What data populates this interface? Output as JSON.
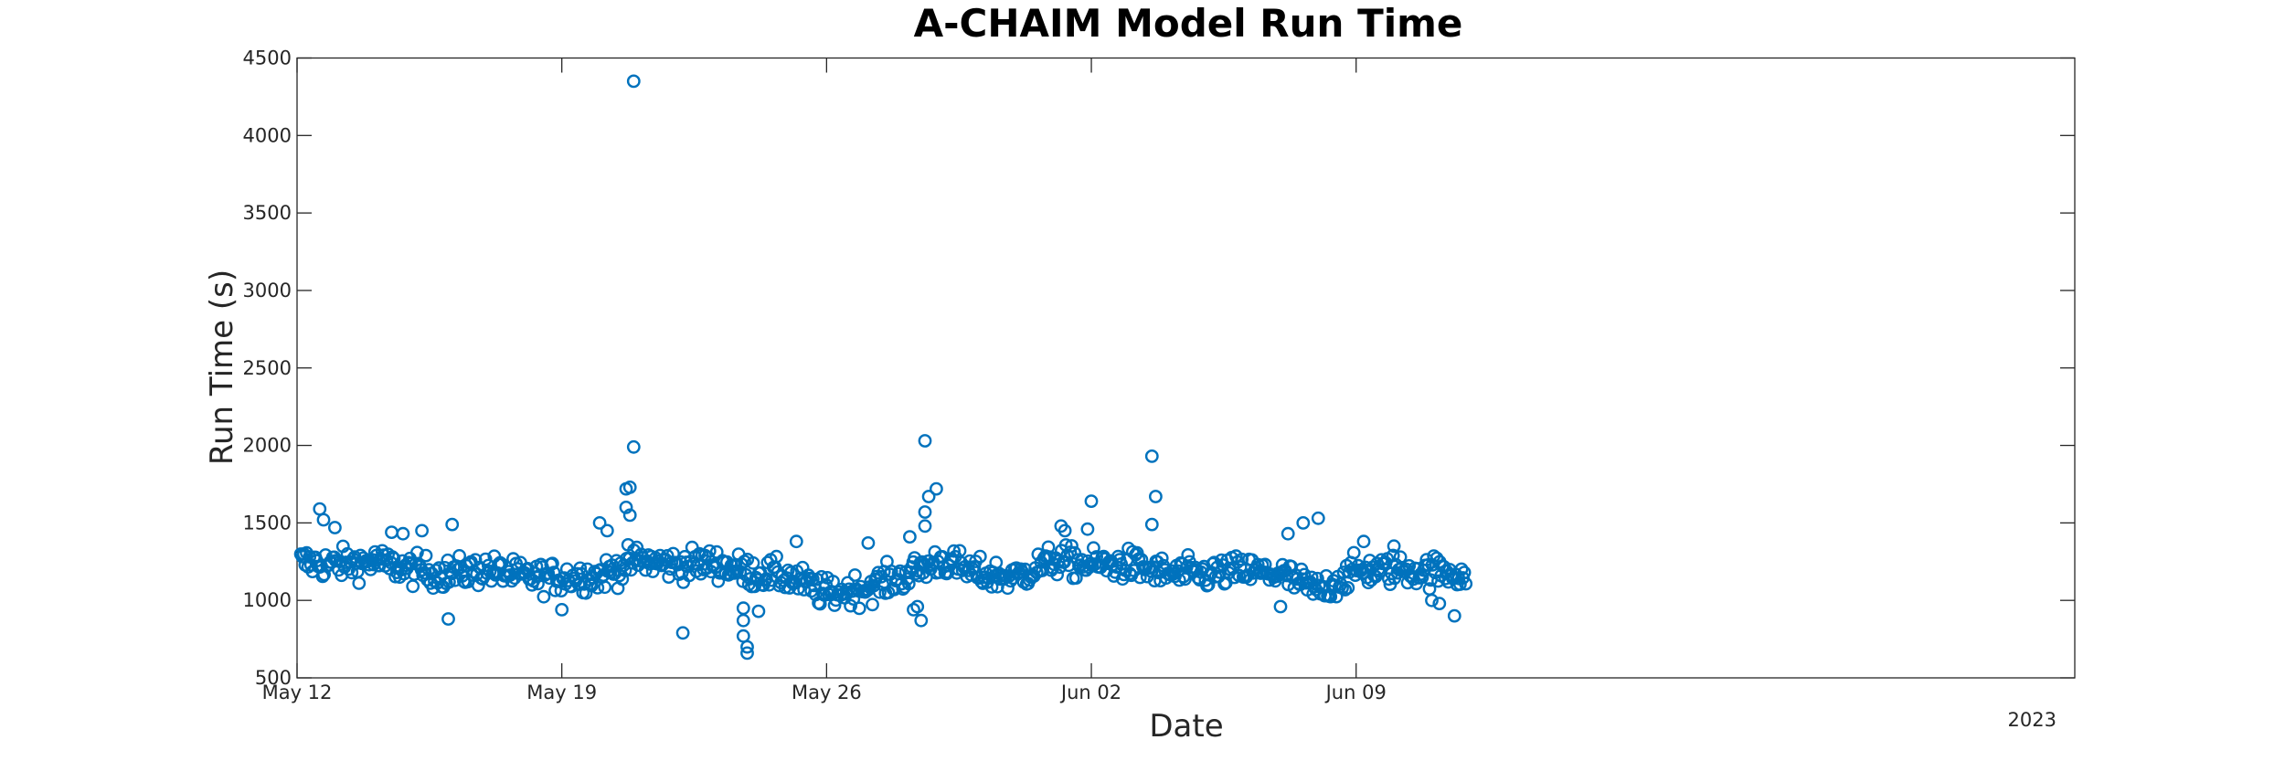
{
  "chart_data": {
    "type": "scatter",
    "title": "A-CHAIM Model Run Time",
    "xlabel": "Date",
    "ylabel": "Run Time (s)",
    "x_unit": "days since May 12 2023",
    "xlim": [
      0,
      47
    ],
    "ylim": [
      500,
      4500
    ],
    "x_ticks": [
      {
        "value": 0,
        "label": "May 12"
      },
      {
        "value": 7,
        "label": "May 19"
      },
      {
        "value": 14,
        "label": "May 26"
      },
      {
        "value": 21,
        "label": "Jun 02"
      },
      {
        "value": 28,
        "label": "Jun 09"
      }
    ],
    "x_secondary_label": "2023",
    "y_ticks": [
      500,
      1000,
      1500,
      2000,
      2500,
      3000,
      3500,
      4000,
      4500
    ],
    "grid": false,
    "marker": "open-circle",
    "series": [
      {
        "name": "Run Time",
        "color": "#0072BD",
        "baseline_profile": [
          [
            0,
            1250
          ],
          [
            1,
            1230
          ],
          [
            2,
            1250
          ],
          [
            3,
            1200
          ],
          [
            4,
            1170
          ],
          [
            5,
            1200
          ],
          [
            6,
            1150
          ],
          [
            7,
            1150
          ],
          [
            8,
            1160
          ],
          [
            9,
            1260
          ],
          [
            10,
            1230
          ],
          [
            11,
            1240
          ],
          [
            12,
            1180
          ],
          [
            13,
            1150
          ],
          [
            14,
            1040
          ],
          [
            15,
            1080
          ],
          [
            16,
            1150
          ],
          [
            17,
            1260
          ],
          [
            18,
            1170
          ],
          [
            19,
            1150
          ],
          [
            20,
            1260
          ],
          [
            21,
            1230
          ],
          [
            22,
            1230
          ],
          [
            23,
            1170
          ],
          [
            24,
            1170
          ],
          [
            25,
            1190
          ],
          [
            26,
            1170
          ],
          [
            27,
            1060
          ],
          [
            28,
            1190
          ],
          [
            29,
            1200
          ],
          [
            30,
            1190
          ],
          [
            31,
            1170
          ]
        ],
        "noise": 80,
        "points_per_day": 26,
        "x_range": [
          0.1,
          30.9
        ],
        "outliers": [
          [
            8.9,
            4350
          ],
          [
            8.9,
            1990
          ],
          [
            8.8,
            1730
          ],
          [
            8.7,
            1720
          ],
          [
            8.7,
            1600
          ],
          [
            8.8,
            1550
          ],
          [
            0.6,
            1590
          ],
          [
            0.7,
            1520
          ],
          [
            1.0,
            1470
          ],
          [
            4.1,
            1490
          ],
          [
            2.5,
            1440
          ],
          [
            2.8,
            1430
          ],
          [
            8.0,
            1500
          ],
          [
            8.2,
            1450
          ],
          [
            11.8,
            950
          ],
          [
            11.8,
            870
          ],
          [
            11.8,
            770
          ],
          [
            11.9,
            700
          ],
          [
            11.9,
            660
          ],
          [
            12.2,
            930
          ],
          [
            10.2,
            790
          ],
          [
            4.0,
            880
          ],
          [
            7.0,
            940
          ],
          [
            15.1,
            1370
          ],
          [
            13.2,
            1380
          ],
          [
            16.6,
            2030
          ],
          [
            16.7,
            1670
          ],
          [
            16.9,
            1720
          ],
          [
            16.6,
            1570
          ],
          [
            16.6,
            1480
          ],
          [
            16.2,
            1410
          ],
          [
            16.5,
            870
          ],
          [
            16.4,
            960
          ],
          [
            16.3,
            940
          ],
          [
            20.2,
            1480
          ],
          [
            20.3,
            1450
          ],
          [
            20.9,
            1460
          ],
          [
            21.0,
            1640
          ],
          [
            22.6,
            1930
          ],
          [
            22.7,
            1670
          ],
          [
            22.6,
            1490
          ],
          [
            26.6,
            1500
          ],
          [
            27.0,
            1530
          ],
          [
            26.2,
            1430
          ],
          [
            26.0,
            960
          ],
          [
            28.2,
            1380
          ],
          [
            29.0,
            1350
          ],
          [
            30.0,
            1000
          ],
          [
            30.2,
            980
          ],
          [
            30.6,
            900
          ],
          [
            3.3,
            1450
          ],
          [
            2.1,
            1290
          ]
        ]
      }
    ]
  }
}
